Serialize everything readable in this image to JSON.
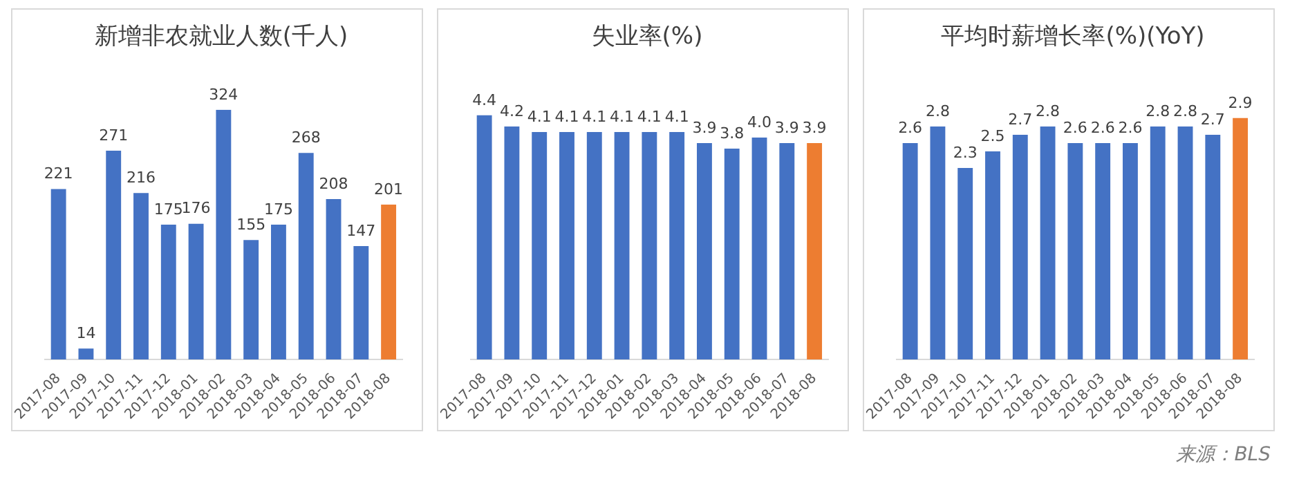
{
  "chart_data": [
    {
      "type": "bar",
      "title": "新增非农就业人数(千人)",
      "categories": [
        "2017-08",
        "2017-09",
        "2017-10",
        "2017-11",
        "2017-12",
        "2018-01",
        "2018-02",
        "2018-03",
        "2018-04",
        "2018-05",
        "2018-06",
        "2018-07",
        "2018-08"
      ],
      "values": [
        221,
        14,
        271,
        216,
        175,
        176,
        324,
        155,
        175,
        268,
        208,
        147,
        201
      ],
      "colors": [
        "#4472c4",
        "#4472c4",
        "#4472c4",
        "#4472c4",
        "#4472c4",
        "#4472c4",
        "#4472c4",
        "#4472c4",
        "#4472c4",
        "#4472c4",
        "#4472c4",
        "#4472c4",
        "#ed7d31"
      ],
      "ylim": [
        0,
        324
      ],
      "data_labels": true,
      "grid": false,
      "legend": false,
      "tick_labels": "x"
    },
    {
      "type": "bar",
      "title": "失业率(%)",
      "categories": [
        "2017-08",
        "2017-09",
        "2017-10",
        "2017-11",
        "2017-12",
        "2018-01",
        "2018-02",
        "2018-03",
        "2018-04",
        "2018-05",
        "2018-06",
        "2018-07",
        "2018-08"
      ],
      "values": [
        4.4,
        4.2,
        4.1,
        4.1,
        4.1,
        4.1,
        4.1,
        4.1,
        3.9,
        3.8,
        4.0,
        3.9,
        3.9
      ],
      "value_labels": [
        "4.4",
        "4.2",
        "4.1",
        "4.1",
        "4.1",
        "4.1",
        "4.1",
        "4.1",
        "3.9",
        "3.8",
        "4.0",
        "3.9",
        "3.9"
      ],
      "colors": [
        "#4472c4",
        "#4472c4",
        "#4472c4",
        "#4472c4",
        "#4472c4",
        "#4472c4",
        "#4472c4",
        "#4472c4",
        "#4472c4",
        "#4472c4",
        "#4472c4",
        "#4472c4",
        "#ed7d31"
      ],
      "grid": false,
      "legend": false,
      "tick_labels": "x"
    },
    {
      "type": "bar",
      "title": "平均时薪增长率(%)(YoY)",
      "categories": [
        "2017-08",
        "2017-09",
        "2017-10",
        "2017-11",
        "2017-12",
        "2018-01",
        "2018-02",
        "2018-03",
        "2018-04",
        "2018-05",
        "2018-06",
        "2018-07",
        "2018-08"
      ],
      "values": [
        2.6,
        2.8,
        2.3,
        2.5,
        2.7,
        2.8,
        2.6,
        2.6,
        2.6,
        2.8,
        2.8,
        2.7,
        2.9
      ],
      "colors": [
        "#4472c4",
        "#4472c4",
        "#4472c4",
        "#4472c4",
        "#4472c4",
        "#4472c4",
        "#4472c4",
        "#4472c4",
        "#4472c4",
        "#4472c4",
        "#4472c4",
        "#4472c4",
        "#ed7d31"
      ],
      "data_labels": true,
      "grid": false,
      "legend": false,
      "tick_labels": "x",
      "annotations": [
        "来源：BLS"
      ]
    }
  ]
}
